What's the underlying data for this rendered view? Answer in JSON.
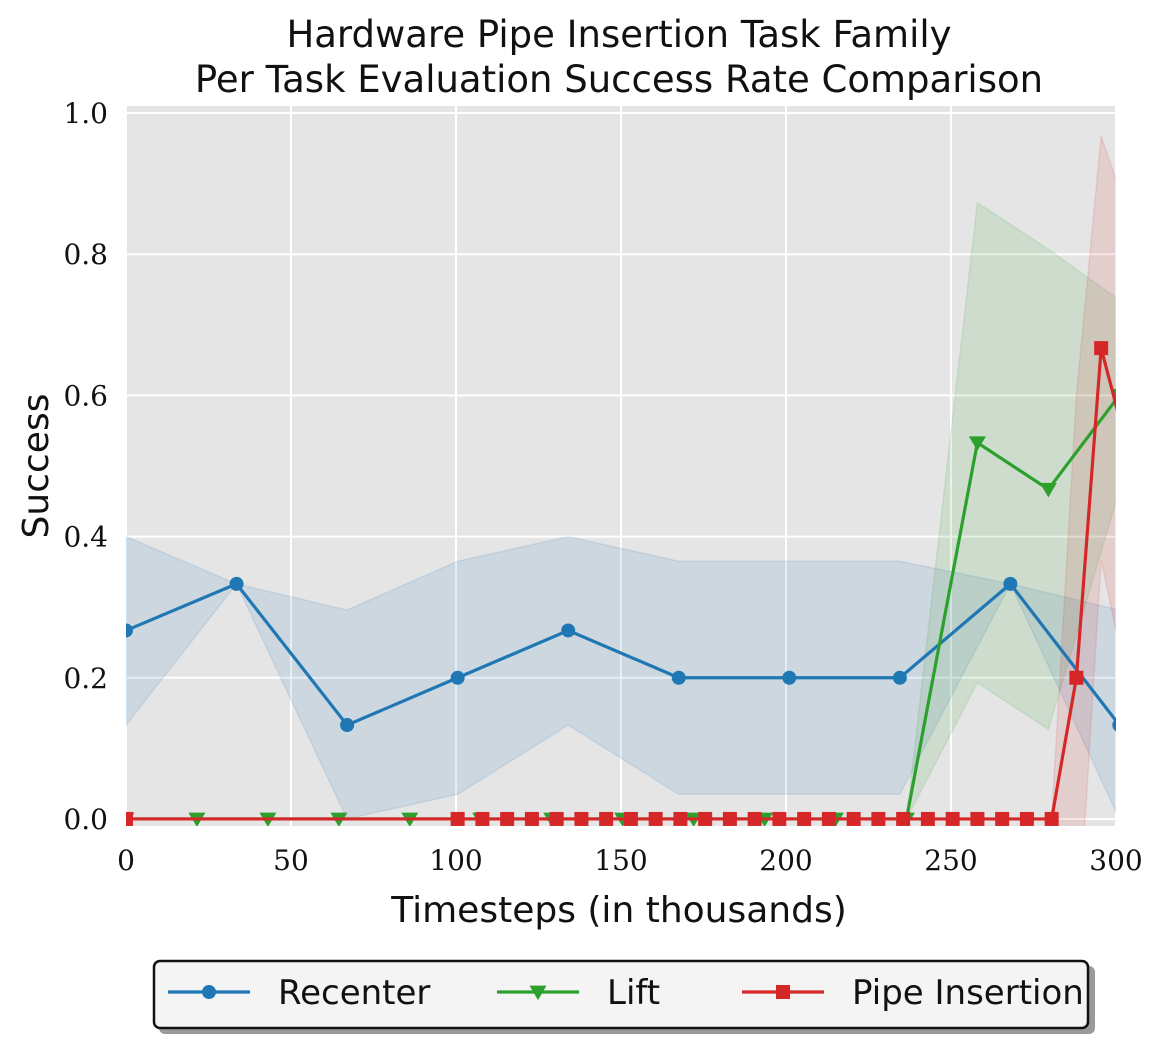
{
  "chart_data": {
    "type": "line",
    "title": [
      "Hardware Pipe Insertion Task Family",
      "Per Task Evaluation Success Rate Comparison"
    ],
    "xlabel": "Timesteps (in thousands)",
    "ylabel": "Success",
    "xlim": [
      0,
      300
    ],
    "ylim": [
      -0.01,
      1.01
    ],
    "xticks": [
      0,
      50,
      100,
      150,
      200,
      250,
      300
    ],
    "xtick_labels": [
      "0",
      "50",
      "100",
      "150",
      "200",
      "250",
      "300"
    ],
    "yticks": [
      0.0,
      0.2,
      0.4,
      0.6,
      0.8,
      1.0
    ],
    "ytick_labels": [
      "0.0",
      "0.2",
      "0.4",
      "0.6",
      "0.8",
      "1.0"
    ],
    "grid": true,
    "legend_placement": "bottom-center",
    "series": [
      {
        "name": "Recenter",
        "color": "#1f77b4",
        "marker": "circle",
        "x": [
          0,
          33.5,
          67,
          100.5,
          134,
          167.5,
          201,
          234.5,
          268,
          301
        ],
        "y": [
          0.267,
          0.333,
          0.133,
          0.2,
          0.267,
          0.2,
          0.2,
          0.2,
          0.333,
          0.133
        ],
        "lower": [
          0.133,
          0.333,
          0.0,
          0.035,
          0.133,
          0.035,
          0.035,
          0.035,
          0.333,
          0.0
        ],
        "upper": [
          0.4,
          0.333,
          0.296,
          0.365,
          0.4,
          0.365,
          0.365,
          0.365,
          0.333,
          0.296
        ]
      },
      {
        "name": "Lift",
        "color": "#2ca02c",
        "marker": "triangle-down",
        "x": [
          0,
          21.5,
          43,
          64.5,
          86,
          107.5,
          129,
          150.5,
          172,
          193.5,
          215,
          236.5,
          258,
          279.5,
          301
        ],
        "y": [
          0,
          0,
          0,
          0,
          0,
          0,
          0,
          0,
          0,
          0,
          0,
          0,
          0.533,
          0.467,
          0.6
        ],
        "lower": [
          0,
          0,
          0,
          0,
          0,
          0,
          0,
          0,
          0,
          0,
          0,
          0,
          0.193,
          0.127,
          0.465
        ],
        "upper": [
          0,
          0,
          0,
          0,
          0,
          0,
          0,
          0,
          0,
          0,
          0,
          0,
          0.873,
          0.807,
          0.735
        ]
      },
      {
        "name": "Pipe Insertion",
        "color": "#d62728",
        "marker": "square",
        "x": [
          0,
          100.5,
          108,
          115.5,
          123,
          130.5,
          138,
          145.5,
          153,
          160.5,
          168,
          175.5,
          183,
          190.5,
          198,
          205.5,
          213,
          220.5,
          228,
          235.5,
          243,
          250.5,
          258,
          265.5,
          273,
          280.5,
          288,
          295.5,
          303
        ],
        "y": [
          0,
          0,
          0,
          0,
          0,
          0,
          0,
          0,
          0,
          0,
          0,
          0,
          0,
          0,
          0,
          0,
          0,
          0,
          0,
          0,
          0,
          0,
          0,
          0,
          0,
          0,
          0.2,
          0.667,
          0.533
        ],
        "lower": [
          0,
          0,
          0,
          0,
          0,
          0,
          0,
          0,
          0,
          0,
          0,
          0,
          0,
          0,
          0,
          0,
          0,
          0,
          0,
          0,
          0,
          0,
          0,
          0,
          0,
          0,
          -0.2,
          0.367,
          0.2
        ],
        "upper": [
          0,
          0,
          0,
          0,
          0,
          0,
          0,
          0,
          0,
          0,
          0,
          0,
          0,
          0,
          0,
          0,
          0,
          0,
          0,
          0,
          0,
          0,
          0,
          0,
          0,
          0,
          0.6,
          0.967,
          0.867
        ]
      }
    ]
  }
}
